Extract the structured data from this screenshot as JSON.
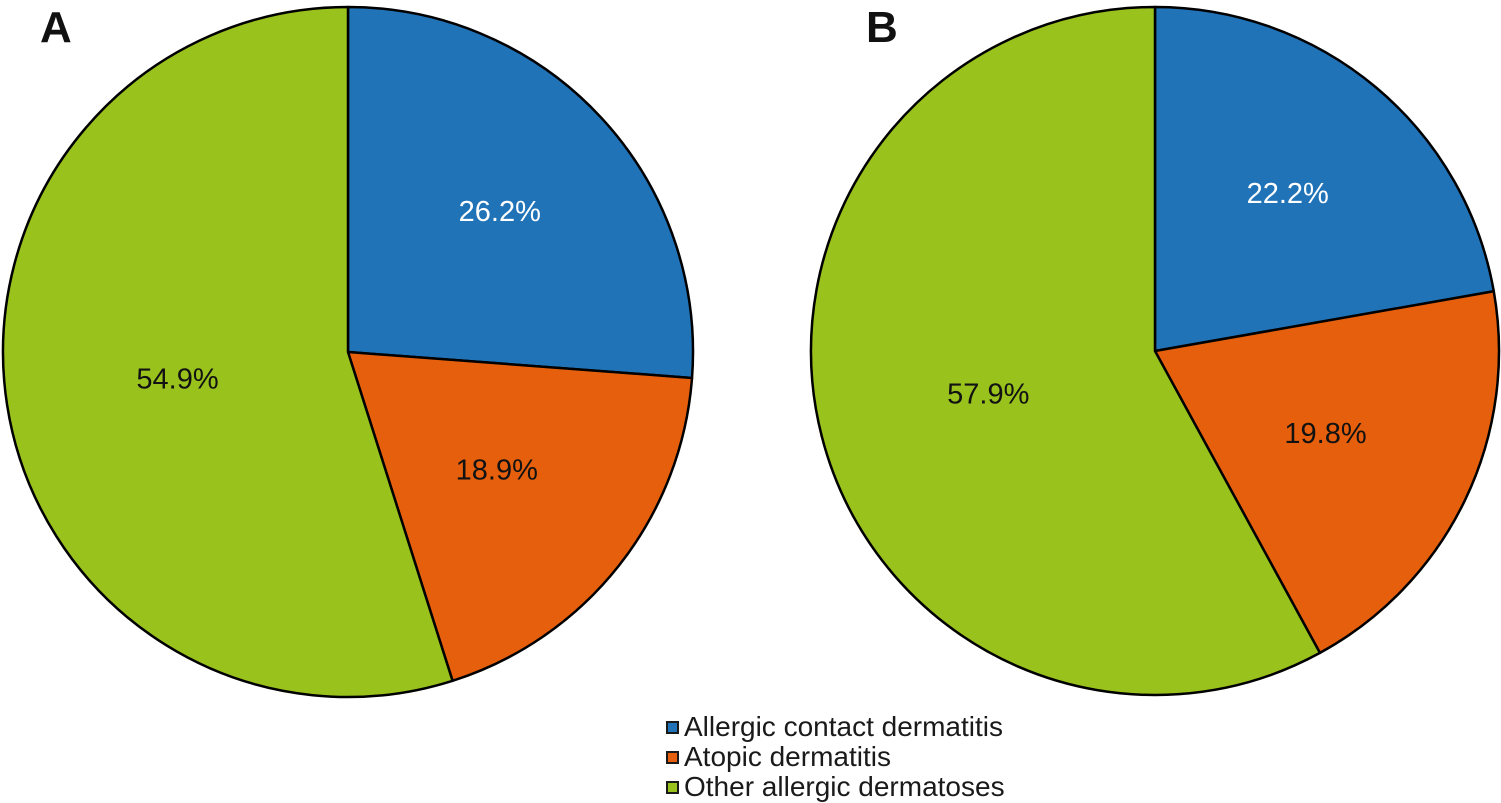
{
  "figure": {
    "background": "#ffffff",
    "slice_border_color": "#000000"
  },
  "chart_data": [
    {
      "type": "pie",
      "panel_label": "A",
      "categories": [
        "Allergic contact dermatitis",
        "Atopic dermatitis",
        "Other allergic dermatoses"
      ],
      "values": [
        26.2,
        18.9,
        54.9
      ],
      "value_labels": [
        "26.2%",
        "18.9%",
        "54.9%"
      ],
      "colors": [
        "#2173B8",
        "#E65F0C",
        "#99C21D"
      ],
      "value_label_colors": [
        "#ffffff",
        "#121212",
        "#121212"
      ],
      "start_angle_deg": 0,
      "direction": "clockwise",
      "legend_position": "bottom-center"
    },
    {
      "type": "pie",
      "panel_label": "B",
      "categories": [
        "Allergic contact dermatitis",
        "Atopic dermatitis",
        "Other allergic dermatoses"
      ],
      "values": [
        22.2,
        19.8,
        57.9
      ],
      "value_labels": [
        "22.2%",
        "19.8%",
        "57.9%"
      ],
      "colors": [
        "#2173B8",
        "#E65F0C",
        "#99C21D"
      ],
      "value_label_colors": [
        "#ffffff",
        "#121212",
        "#121212"
      ],
      "start_angle_deg": 0,
      "direction": "clockwise",
      "legend_position": "bottom-center"
    }
  ],
  "legend": {
    "position": "bottom-center",
    "items": [
      {
        "label": "Allergic contact dermatitis",
        "color": "#2173B8"
      },
      {
        "label": "Atopic dermatitis",
        "color": "#E65F0C"
      },
      {
        "label": "Other allergic dermatoses",
        "color": "#99C21D"
      }
    ]
  }
}
